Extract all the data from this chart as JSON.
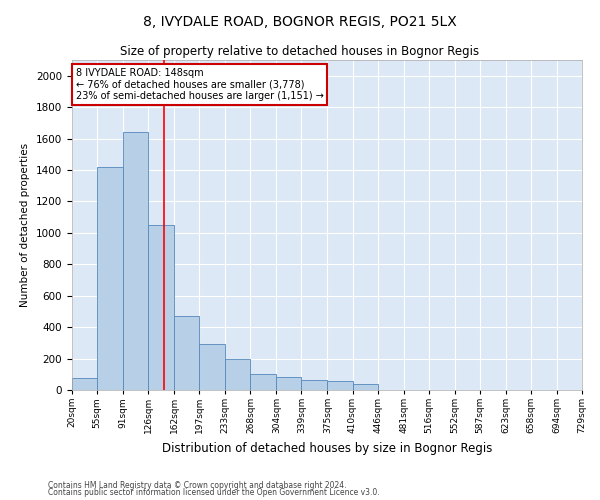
{
  "title1": "8, IVYDALE ROAD, BOGNOR REGIS, PO21 5LX",
  "title2": "Size of property relative to detached houses in Bognor Regis",
  "xlabel": "Distribution of detached houses by size in Bognor Regis",
  "ylabel": "Number of detached properties",
  "footnote1": "Contains HM Land Registry data © Crown copyright and database right 2024.",
  "footnote2": "Contains public sector information licensed under the Open Government Licence v3.0.",
  "annotation_line1": "8 IVYDALE ROAD: 148sqm",
  "annotation_line2": "← 76% of detached houses are smaller (3,778)",
  "annotation_line3": "23% of semi-detached houses are larger (1,151) →",
  "bar_color": "#b8cfe8",
  "bar_edge_color": "#5588bb",
  "red_line_x": 148,
  "ylim": [
    0,
    2100
  ],
  "yticks": [
    0,
    200,
    400,
    600,
    800,
    1000,
    1200,
    1400,
    1600,
    1800,
    2000
  ],
  "bin_edges": [
    20,
    55,
    91,
    126,
    162,
    197,
    233,
    268,
    304,
    339,
    375,
    410,
    446,
    481,
    516,
    552,
    587,
    623,
    658,
    694,
    729
  ],
  "bar_heights": [
    75,
    1420,
    1640,
    1050,
    470,
    290,
    195,
    100,
    80,
    65,
    55,
    40,
    0,
    0,
    0,
    0,
    0,
    0,
    0,
    0
  ],
  "plot_bg_color": "#dce8f5",
  "grid_color": "#ffffff",
  "annotation_box_color": "#ffffff",
  "annotation_box_edge": "#cc0000",
  "title1_fontsize": 10,
  "title2_fontsize": 8.5,
  "ylabel_fontsize": 7.5,
  "xlabel_fontsize": 8.5,
  "ytick_fontsize": 7.5,
  "xtick_fontsize": 6.5,
  "annotation_fontsize": 7,
  "footnote_fontsize": 5.5
}
